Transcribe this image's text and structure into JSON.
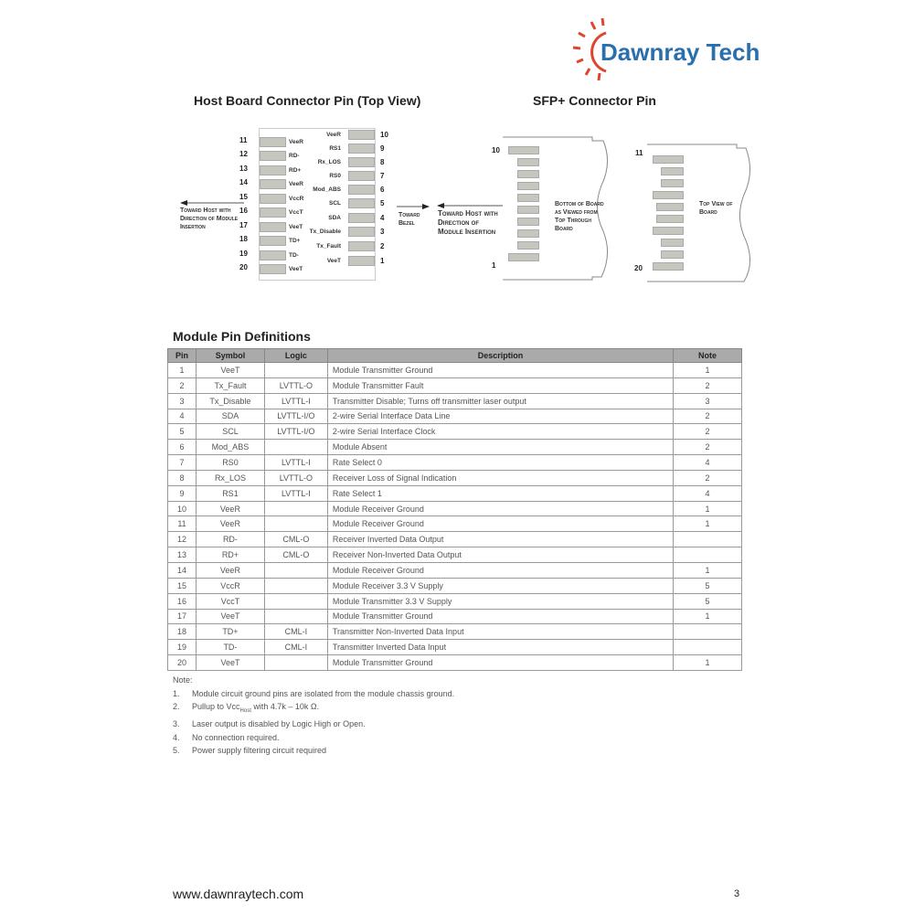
{
  "logo": {
    "text": "Dawnray Tech",
    "sun_color": "#e0442c",
    "text_color": "#2a6fad"
  },
  "host": {
    "title": "Host Board Connector Pin (Top View)",
    "left_pins": [
      {
        "n": "11",
        "s": "VeeR"
      },
      {
        "n": "12",
        "s": "RD-"
      },
      {
        "n": "13",
        "s": "RD+"
      },
      {
        "n": "14",
        "s": "VeeR"
      },
      {
        "n": "15",
        "s": "VccR"
      },
      {
        "n": "16",
        "s": "VccT"
      },
      {
        "n": "17",
        "s": "VeeT"
      },
      {
        "n": "18",
        "s": "TD+"
      },
      {
        "n": "19",
        "s": "TD-"
      },
      {
        "n": "20",
        "s": "VeeT"
      }
    ],
    "right_pins": [
      {
        "n": "10",
        "s": "VeeR"
      },
      {
        "n": "9",
        "s": "RS1"
      },
      {
        "n": "8",
        "s": "Rx_LOS"
      },
      {
        "n": "7",
        "s": "RS0"
      },
      {
        "n": "6",
        "s": "Mod_ABS"
      },
      {
        "n": "5",
        "s": "SCL"
      },
      {
        "n": "4",
        "s": "SDA"
      },
      {
        "n": "3",
        "s": "Tx_Disable"
      },
      {
        "n": "2",
        "s": "Tx_Fault"
      },
      {
        "n": "1",
        "s": "VeeT"
      }
    ],
    "toward_host": "Toward Host with Direction of Module Insertion",
    "toward_bezel": "Toward Bezel"
  },
  "sfp": {
    "title": "SFP+ Connector Pin",
    "toward_host": "Toward Host with Direction of Module Insertion",
    "bottom_label": "Bottom of Board as Viewed from Top Through Board",
    "top_label": "Top View of Board",
    "left_top": "10",
    "left_bottom": "1",
    "right_top": "11",
    "right_bottom": "20"
  },
  "table": {
    "title": "Module Pin Definitions",
    "headers": [
      "Pin",
      "Symbol",
      "Logic",
      "Description",
      "Note"
    ],
    "rows": [
      [
        "1",
        "VeeT",
        "",
        "Module Transmitter Ground",
        "1"
      ],
      [
        "2",
        "Tx_Fault",
        "LVTTL-O",
        "Module Transmitter Fault",
        "2"
      ],
      [
        "3",
        "Tx_Disable",
        "LVTTL-I",
        "Transmitter Disable; Turns off transmitter laser output",
        "3"
      ],
      [
        "4",
        "SDA",
        "LVTTL-I/O",
        "2-wire Serial Interface Data Line",
        "2"
      ],
      [
        "5",
        "SCL",
        "LVTTL-I/O",
        "2-wire Serial Interface Clock",
        "2"
      ],
      [
        "6",
        "Mod_ABS",
        "",
        "Module Absent",
        "2"
      ],
      [
        "7",
        "RS0",
        "LVTTL-I",
        "Rate Select 0",
        "4"
      ],
      [
        "8",
        "Rx_LOS",
        "LVTTL-O",
        "Receiver Loss of Signal Indication",
        "2"
      ],
      [
        "9",
        "RS1",
        "LVTTL-I",
        "Rate Select 1",
        "4"
      ],
      [
        "10",
        "VeeR",
        "",
        "Module Receiver Ground",
        "1"
      ],
      [
        "11",
        "VeeR",
        "",
        "Module Receiver Ground",
        "1"
      ],
      [
        "12",
        "RD-",
        "CML-O",
        "Receiver Inverted Data Output",
        ""
      ],
      [
        "13",
        "RD+",
        "CML-O",
        "Receiver Non-Inverted Data Output",
        ""
      ],
      [
        "14",
        "VeeR",
        "",
        "Module Receiver Ground",
        "1"
      ],
      [
        "15",
        "VccR",
        "",
        "Module Receiver 3.3 V Supply",
        "5"
      ],
      [
        "16",
        "VccT",
        "",
        "Module Transmitter 3.3 V Supply",
        "5"
      ],
      [
        "17",
        "VeeT",
        "",
        "Module Transmitter Ground",
        "1"
      ],
      [
        "18",
        "TD+",
        "CML-I",
        "Transmitter Non-Inverted Data Input",
        ""
      ],
      [
        "19",
        "TD-",
        "CML-I",
        "Transmitter Inverted Data Input",
        ""
      ],
      [
        "20",
        "VeeT",
        "",
        "Module Transmitter Ground",
        "1"
      ]
    ]
  },
  "notes": {
    "title": "Note:",
    "items": [
      {
        "n": "1.",
        "t": "Module circuit ground pins are isolated from the module chassis ground."
      },
      {
        "n": "2.",
        "t": "Pullup to Vcc",
        "sub": "Host",
        "t2": " with 4.7k – 10k Ω."
      },
      {
        "n": "3.",
        "t": "Laser output is disabled by Logic High or Open."
      },
      {
        "n": "4.",
        "t": "No connection required."
      },
      {
        "n": "5.",
        "t": "Power supply filtering circuit required"
      }
    ]
  },
  "footer": {
    "url": "www.dawnraytech.com",
    "page": "3"
  }
}
